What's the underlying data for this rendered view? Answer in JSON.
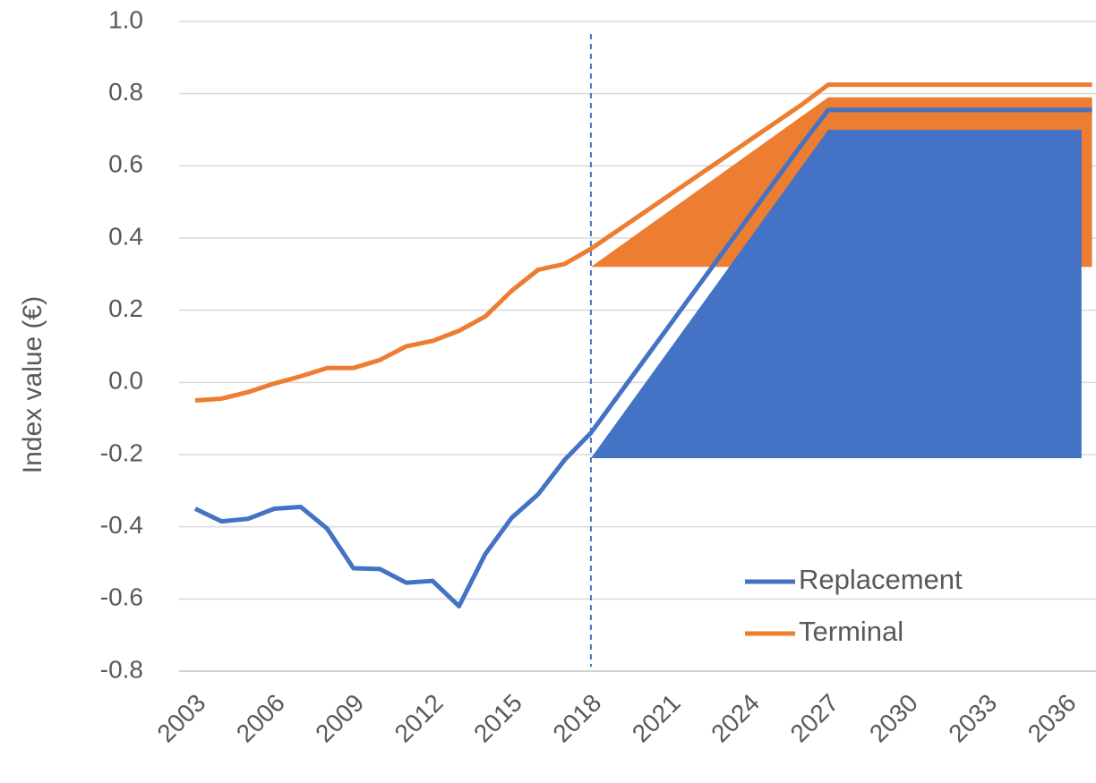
{
  "chart_data": {
    "type": "line",
    "y_label": "Index value (€)",
    "x": [
      2003,
      2004,
      2005,
      2006,
      2007,
      2008,
      2009,
      2010,
      2011,
      2012,
      2013,
      2014,
      2015,
      2016,
      2017,
      2018,
      2019,
      2020,
      2021,
      2022,
      2023,
      2024,
      2025,
      2026,
      2027,
      2028,
      2029,
      2030,
      2031,
      2032,
      2033,
      2034,
      2035,
      2036,
      2037
    ],
    "series": [
      {
        "name": "Replacement",
        "color": "#4472c4",
        "values": [
          -0.35,
          -0.385,
          -0.378,
          -0.35,
          -0.345,
          -0.405,
          -0.515,
          -0.517,
          -0.555,
          -0.55,
          -0.62,
          -0.475,
          -0.375,
          -0.31,
          -0.215,
          -0.14,
          -0.04,
          0.06,
          0.16,
          0.26,
          0.36,
          0.46,
          0.56,
          0.66,
          0.755,
          0.755,
          0.755,
          0.755,
          0.755,
          0.755,
          0.755,
          0.755,
          0.755,
          0.755,
          0.755
        ]
      },
      {
        "name": "Terminal",
        "color": "#ed7d31",
        "values": [
          -0.05,
          -0.045,
          -0.027,
          -0.003,
          0.017,
          0.04,
          0.04,
          0.062,
          0.1,
          0.115,
          0.143,
          0.183,
          0.254,
          0.312,
          0.328,
          0.37,
          0.42,
          0.47,
          0.52,
          0.57,
          0.62,
          0.67,
          0.72,
          0.77,
          0.825,
          0.825,
          0.825,
          0.825,
          0.825,
          0.825,
          0.825,
          0.825,
          0.825,
          0.825,
          0.825
        ]
      }
    ],
    "bands": [
      {
        "color": "#ed7d31",
        "x": [
          2018,
          2027,
          2037
        ],
        "lower": [
          0.32,
          0.32,
          0.32
        ],
        "upper": [
          0.32,
          0.79,
          0.79
        ]
      },
      {
        "color": "#4472c4",
        "x": [
          2018,
          2027,
          2036.6
        ],
        "lower": [
          -0.21,
          -0.21,
          -0.21
        ],
        "upper": [
          -0.21,
          0.7,
          0.7
        ]
      }
    ],
    "vline": 2018,
    "xlim": [
      2003,
      2037
    ],
    "xticks": [
      2003,
      2006,
      2009,
      2012,
      2015,
      2018,
      2021,
      2024,
      2027,
      2030,
      2033,
      2036
    ],
    "ylim": [
      -0.8,
      1.0
    ],
    "yticks": [
      {
        "value": -0.8,
        "label": "-0.8"
      },
      {
        "value": -0.6,
        "label": "-0.6"
      },
      {
        "value": -0.4,
        "label": "-0.4"
      },
      {
        "value": -0.2,
        "label": "-0.2"
      },
      {
        "value": 0,
        "label": "0.0"
      },
      {
        "value": 0.2,
        "label": "0.2"
      },
      {
        "value": 0.4,
        "label": "0.4"
      },
      {
        "value": 0.6,
        "label": "0.6"
      },
      {
        "value": 0.8,
        "label": "0.8"
      },
      {
        "value": 1.0,
        "label": "1.0"
      }
    ],
    "grid": true,
    "legend": "lower right"
  }
}
